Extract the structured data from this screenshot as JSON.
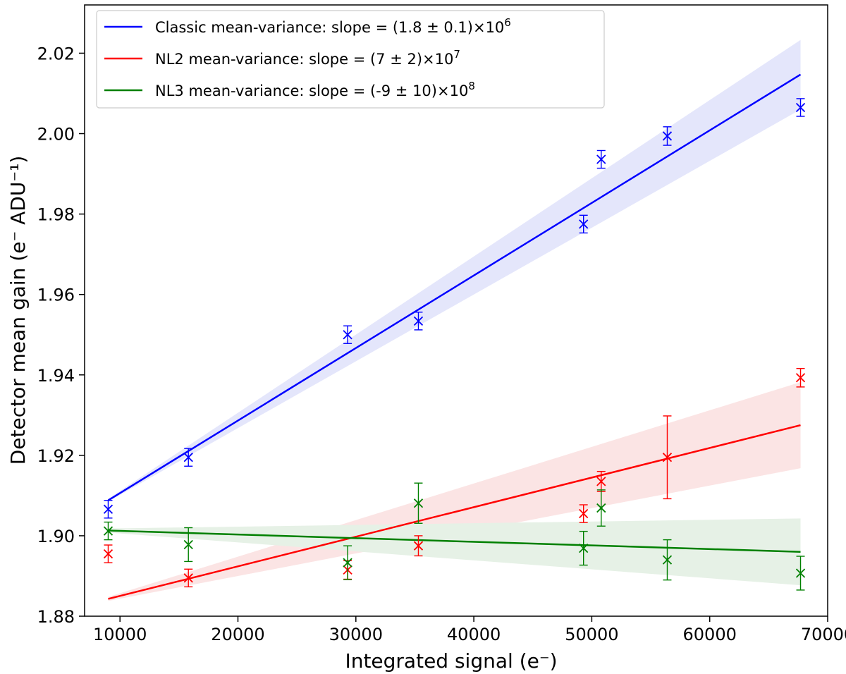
{
  "chart_data": {
    "type": "scatter",
    "xlabel": "Integrated signal (e⁻)",
    "ylabel": "Detector mean gain (e⁻ ADU⁻¹)",
    "xlim": [
      7000,
      70000
    ],
    "ylim": [
      1.88,
      2.032
    ],
    "xticks": [
      10000,
      20000,
      30000,
      40000,
      50000,
      60000,
      70000
    ],
    "xtick_labels": [
      "10000",
      "20000",
      "30000",
      "40000",
      "50000",
      "60000",
      "70000"
    ],
    "yticks": [
      1.88,
      1.9,
      1.92,
      1.94,
      1.96,
      1.98,
      2.0,
      2.02
    ],
    "ytick_labels": [
      "1.88",
      "1.90",
      "1.92",
      "1.94",
      "1.96",
      "1.98",
      "2.00",
      "2.02"
    ],
    "grid": false,
    "legend_position": "top-left",
    "series": [
      {
        "name": "Classic mean-variance",
        "legend_label": "Classic mean-variance: slope = (1.8 ± 0.1)×10",
        "legend_exp": "6",
        "color": "#0000ff",
        "band_color": "#e4e6fb",
        "x": [
          9000,
          15800,
          29300,
          35300,
          49300,
          50800,
          56400,
          67700
        ],
        "y": [
          1.9066,
          1.9195,
          1.95,
          1.9534,
          1.9775,
          1.9936,
          1.9994,
          2.0065
        ],
        "err": [
          0.0022,
          0.0022,
          0.0022,
          0.0022,
          0.0022,
          0.0022,
          0.0023,
          0.0022
        ],
        "fit": [
          [
            9000,
            1.9088
          ],
          [
            67700,
            2.0147
          ]
        ],
        "band_lower": [
          [
            9000,
            1.9085
          ],
          [
            67700,
            2.006
          ]
        ],
        "band_upper": [
          [
            9000,
            1.9092
          ],
          [
            67700,
            2.0233
          ]
        ]
      },
      {
        "name": "NL2 mean-variance",
        "legend_label": "NL2 mean-variance: slope = (7 ± 2)×10",
        "legend_exp": "7",
        "color": "#ff0000",
        "band_color": "#fbe4e4",
        "x": [
          9000,
          15800,
          29300,
          35300,
          49300,
          50800,
          56400,
          67700
        ],
        "y": [
          1.8955,
          1.8895,
          1.8915,
          1.8975,
          1.9055,
          1.9135,
          1.9195,
          1.9393
        ],
        "err": [
          0.0022,
          0.0022,
          0.0023,
          0.0025,
          0.0022,
          0.0025,
          0.0103,
          0.0023
        ],
        "fit": [
          [
            9000,
            1.8843
          ],
          [
            67700,
            1.9275
          ]
        ],
        "band_lower": [
          [
            9000,
            1.8838
          ],
          [
            67700,
            1.9168
          ]
        ],
        "band_upper": [
          [
            9000,
            1.8848
          ],
          [
            67700,
            1.9382
          ]
        ]
      },
      {
        "name": "NL3 mean-variance",
        "legend_label": "NL3 mean-variance: slope = (-9 ± 10)×10",
        "legend_exp": "8",
        "color": "#008000",
        "band_color": "#e6f1e6",
        "x": [
          9000,
          15800,
          29300,
          35300,
          49300,
          50800,
          56400,
          67700
        ],
        "y": [
          1.9012,
          1.8978,
          1.8933,
          1.9081,
          1.8969,
          1.9069,
          1.894,
          1.8907
        ],
        "err": [
          0.0022,
          0.0042,
          0.0042,
          0.005,
          0.0042,
          0.0045,
          0.005,
          0.0042
        ],
        "fit": [
          [
            9000,
            1.9013
          ],
          [
            67700,
            1.896
          ]
        ],
        "band_lower": [
          [
            9000,
            1.9008
          ],
          [
            67700,
            1.8877
          ]
        ],
        "band_upper": [
          [
            9000,
            1.9018
          ],
          [
            67700,
            1.9043
          ]
        ]
      }
    ]
  }
}
